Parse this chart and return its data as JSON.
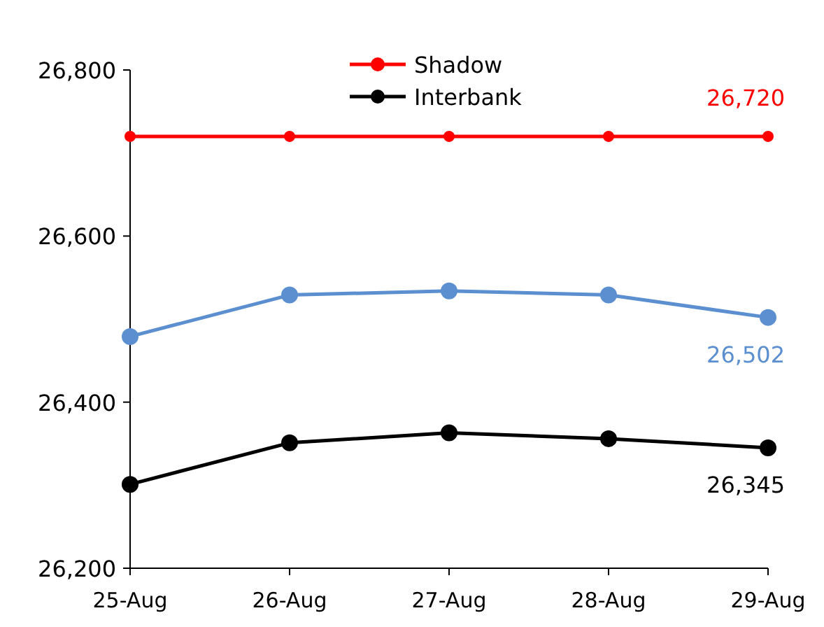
{
  "chart_data": {
    "type": "line",
    "categories": [
      "25-Aug",
      "26-Aug",
      "27-Aug",
      "28-Aug",
      "29-Aug"
    ],
    "series": [
      {
        "color": "#5b8fd0",
        "values": [
          26479,
          26529,
          26534,
          26529,
          26502
        ],
        "value_labels": [
          null,
          null,
          null,
          null,
          "26,502"
        ]
      },
      {
        "name": "Shadow",
        "color": "#ff0000",
        "values": [
          26720,
          26720,
          26720,
          26720,
          26720
        ],
        "value_labels": [
          null,
          null,
          null,
          null,
          "26,720"
        ]
      },
      {
        "name": "Interbank",
        "color": "#000000",
        "values": [
          26301,
          26351,
          26363,
          26356,
          26345
        ],
        "value_labels": [
          null,
          null,
          null,
          null,
          "26,345"
        ]
      }
    ],
    "ylim": [
      26200,
      26800
    ],
    "yticks": [
      {
        "value": 26200,
        "label": "26,200"
      },
      {
        "value": 26400,
        "label": "26,400"
      },
      {
        "value": 26600,
        "label": "26,600"
      },
      {
        "value": 26800,
        "label": "26,800"
      }
    ],
    "grid": false,
    "legend": "top",
    "marker": "circle",
    "line_style": "solid"
  }
}
